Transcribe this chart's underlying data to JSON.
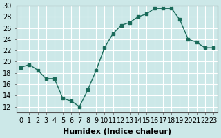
{
  "x": [
    0,
    1,
    2,
    3,
    4,
    5,
    6,
    7,
    8,
    9,
    10,
    11,
    12,
    13,
    14,
    15,
    16,
    17,
    18,
    19,
    20,
    21,
    22,
    23
  ],
  "y": [
    19,
    19.5,
    18.5,
    17,
    17,
    13.5,
    13,
    12,
    15,
    18.5,
    22.5,
    25,
    26.5,
    27,
    28,
    28.5,
    29.5,
    29.5,
    29.5,
    27.5,
    24,
    23.5,
    22.5,
    22.5
  ],
  "xlabel": "Humidex (Indice chaleur)",
  "ylim": [
    11,
    30
  ],
  "xlim": [
    -0.5,
    23.5
  ],
  "yticks": [
    12,
    14,
    16,
    18,
    20,
    22,
    24,
    26,
    28,
    30
  ],
  "xticks": [
    0,
    1,
    2,
    3,
    4,
    5,
    6,
    7,
    8,
    9,
    10,
    11,
    12,
    13,
    14,
    15,
    16,
    17,
    18,
    19,
    20,
    21,
    22,
    23
  ],
  "line_color": "#1a6b5a",
  "bg_color": "#cce8e8",
  "grid_color": "#ffffff",
  "label_fontsize": 8,
  "tick_fontsize": 7
}
